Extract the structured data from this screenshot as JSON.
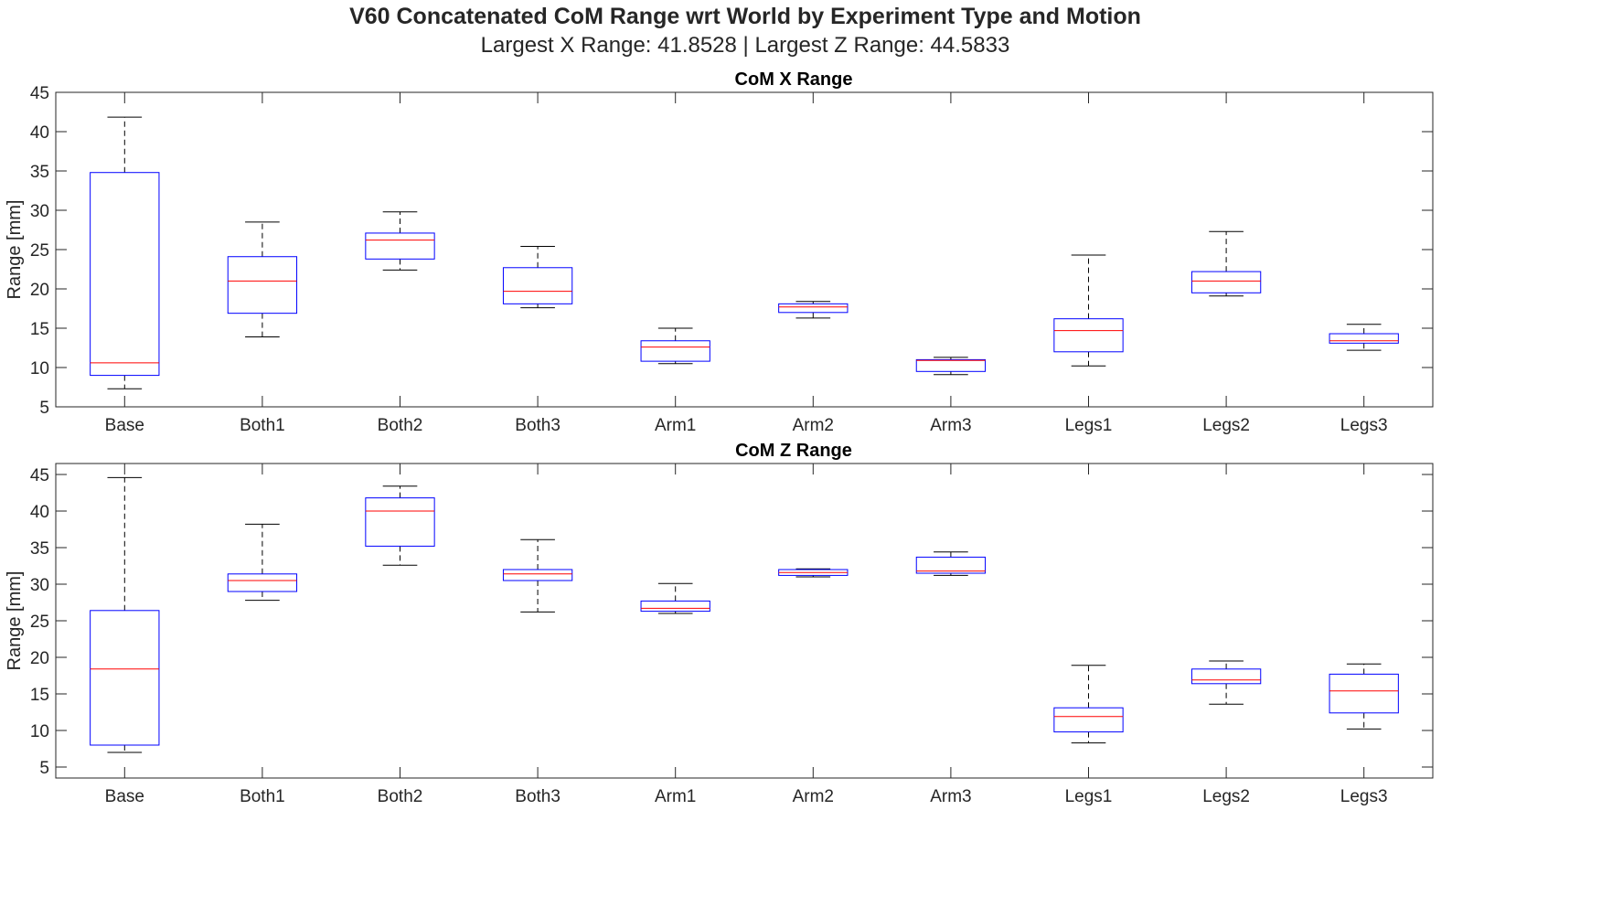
{
  "figure": {
    "title": "V60 Concatenated CoM Range wrt World by Experiment Type and Motion",
    "subtitle": "Largest X Range: 41.8528  |  Largest Z Range: 44.5833"
  },
  "colors": {
    "box": "#0000ff",
    "median": "#ff0000",
    "whisker": "#000000",
    "axis": "#262626"
  },
  "chart_data": [
    {
      "type": "box",
      "title": "CoM X Range",
      "ylabel": "Range [mm]",
      "xlabel": "",
      "ylim": [
        5,
        45
      ],
      "yticks": [
        5,
        10,
        15,
        20,
        25,
        30,
        35,
        40,
        45
      ],
      "grid": false,
      "categories": [
        "Base",
        "Both1",
        "Both2",
        "Both3",
        "Arm1",
        "Arm2",
        "Arm3",
        "Legs1",
        "Legs2",
        "Legs3"
      ],
      "boxes": [
        {
          "min": 7.3,
          "q1": 9.0,
          "median": 10.6,
          "q3": 34.8,
          "max": 41.85
        },
        {
          "min": 13.9,
          "q1": 16.9,
          "median": 21.0,
          "q3": 24.1,
          "max": 28.5
        },
        {
          "min": 22.4,
          "q1": 23.8,
          "median": 26.2,
          "q3": 27.1,
          "max": 29.8
        },
        {
          "min": 17.6,
          "q1": 18.1,
          "median": 19.7,
          "q3": 22.7,
          "max": 25.4
        },
        {
          "min": 10.5,
          "q1": 10.8,
          "median": 12.6,
          "q3": 13.4,
          "max": 15.0
        },
        {
          "min": 16.3,
          "q1": 17.0,
          "median": 17.7,
          "q3": 18.1,
          "max": 18.4
        },
        {
          "min": 9.1,
          "q1": 9.5,
          "median": 10.9,
          "q3": 11.0,
          "max": 11.3
        },
        {
          "min": 10.2,
          "q1": 12.0,
          "median": 14.7,
          "q3": 16.2,
          "max": 24.3
        },
        {
          "min": 19.1,
          "q1": 19.5,
          "median": 21.0,
          "q3": 22.2,
          "max": 27.3
        },
        {
          "min": 12.2,
          "q1": 13.1,
          "median": 13.4,
          "q3": 14.3,
          "max": 15.5
        }
      ]
    },
    {
      "type": "box",
      "title": "CoM Z Range",
      "ylabel": "Range [mm]",
      "xlabel": "",
      "ylim": [
        3.5,
        46.5
      ],
      "yticks": [
        5,
        10,
        15,
        20,
        25,
        30,
        35,
        40,
        45
      ],
      "grid": false,
      "categories": [
        "Base",
        "Both1",
        "Both2",
        "Both3",
        "Arm1",
        "Arm2",
        "Arm3",
        "Legs1",
        "Legs2",
        "Legs3"
      ],
      "boxes": [
        {
          "min": 7.0,
          "q1": 8.0,
          "median": 18.4,
          "q3": 26.4,
          "max": 44.58
        },
        {
          "min": 27.8,
          "q1": 29.0,
          "median": 30.5,
          "q3": 31.4,
          "max": 38.2
        },
        {
          "min": 32.6,
          "q1": 35.2,
          "median": 40.0,
          "q3": 41.8,
          "max": 43.4
        },
        {
          "min": 26.2,
          "q1": 30.5,
          "median": 31.4,
          "q3": 32.0,
          "max": 36.1
        },
        {
          "min": 26.0,
          "q1": 26.3,
          "median": 26.7,
          "q3": 27.7,
          "max": 30.1
        },
        {
          "min": 31.0,
          "q1": 31.2,
          "median": 31.6,
          "q3": 32.0,
          "max": 32.1
        },
        {
          "min": 31.2,
          "q1": 31.5,
          "median": 31.8,
          "q3": 33.7,
          "max": 34.4
        },
        {
          "min": 8.3,
          "q1": 9.8,
          "median": 11.9,
          "q3": 13.1,
          "max": 18.9
        },
        {
          "min": 13.6,
          "q1": 16.4,
          "median": 16.9,
          "q3": 18.4,
          "max": 19.5
        },
        {
          "min": 10.2,
          "q1": 12.4,
          "median": 15.4,
          "q3": 17.7,
          "max": 19.1
        }
      ]
    }
  ]
}
